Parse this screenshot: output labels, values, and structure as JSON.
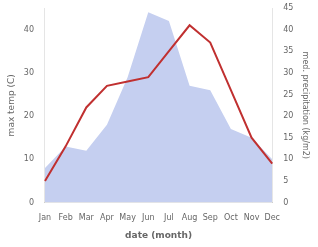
{
  "chart_data": {
    "type": "line",
    "categories": [
      "Jan",
      "Feb",
      "Mar",
      "Apr",
      "May",
      "Jun",
      "Jul",
      "Aug",
      "Sep",
      "Oct",
      "Nov",
      "Dec"
    ],
    "xlabel": "date (month)",
    "ylabel": "max temp (C)",
    "y2label": "med. precipitation (kg/m2)",
    "series": [
      {
        "type": "area",
        "axis": "y2",
        "color": "#c5cff0",
        "values": [
          8,
          13,
          12,
          18,
          29,
          44,
          42,
          27,
          26,
          17,
          15,
          10
        ]
      },
      {
        "type": "line",
        "color": "#c03030",
        "values": [
          5,
          13,
          22,
          27,
          28,
          29,
          35,
          41,
          37,
          26,
          15,
          9
        ]
      }
    ],
    "ylim": [
      0,
      45
    ],
    "yticks": [
      0,
      10,
      20,
      30,
      40
    ],
    "y2lim": [
      0,
      45
    ],
    "y2ticks": [
      0,
      5,
      10,
      15,
      20,
      25,
      30,
      35,
      40,
      45
    ],
    "grid": false
  }
}
